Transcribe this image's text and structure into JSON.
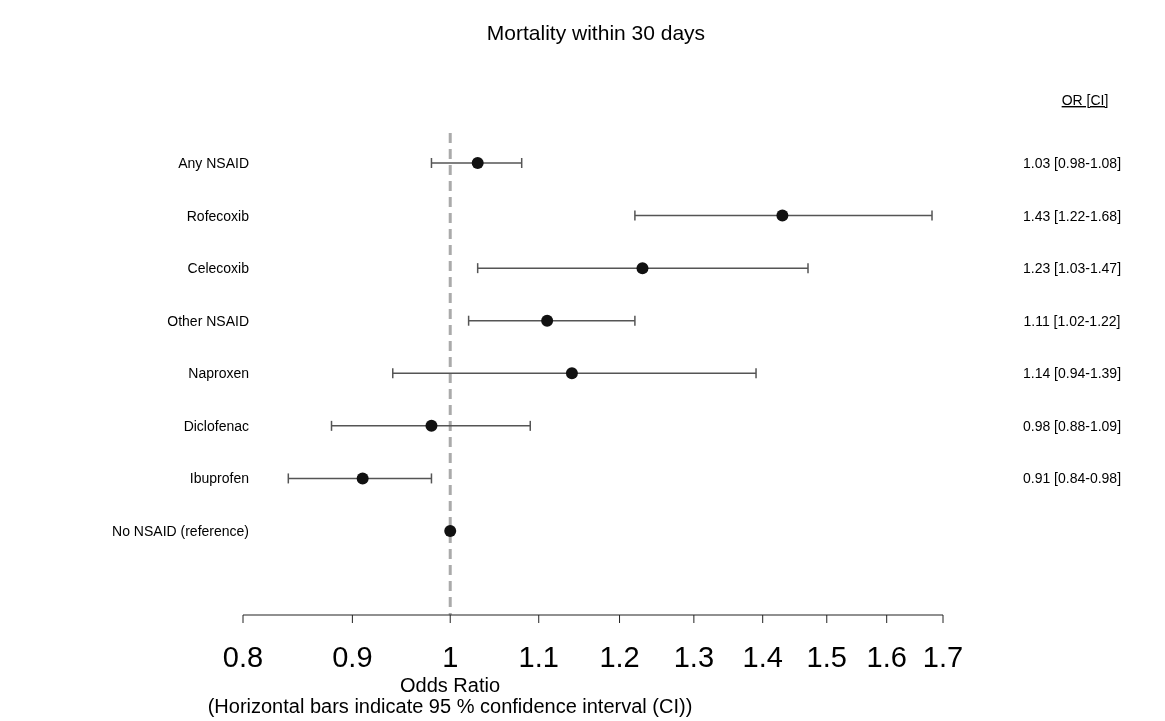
{
  "chart_data": {
    "type": "scatter",
    "orientation": "horizontal",
    "title": "Mortality within 30 days",
    "xlabel": "Odds Ratio",
    "categories": [
      "Any NSAID",
      "Rofecoxib",
      "Celecoxib",
      "Other NSAID",
      "Naproxen",
      "Diclofenac",
      "Ibuprofen",
      "No NSAID (reference)"
    ],
    "series": [
      {
        "color": "#111111",
        "values": [
          1.03,
          1.43,
          1.23,
          1.11,
          1.14,
          0.98,
          0.91,
          1
        ],
        "errors": [
          [
            0.98,
            1.08
          ],
          [
            1.22,
            1.68
          ],
          [
            1.03,
            1.47
          ],
          [
            1.02,
            1.22
          ],
          [
            0.94,
            1.39
          ],
          [
            0.88,
            1.09
          ],
          [
            0.84,
            0.98
          ],
          null
        ],
        "value_labels": [
          "1.03 [0.98-1.08]",
          "1.43 [1.22-1.68]",
          "1.23 [1.03-1.47]",
          "1.11 [1.02-1.22]",
          "1.14 [0.94-1.39]",
          "0.98 [0.88-1.09]",
          "0.91 [0.84-0.98]",
          null
        ]
      }
    ],
    "log": "x",
    "xlim": [
      0.8,
      1.7
    ],
    "xticks": [
      0.8,
      0.9,
      1,
      1.1,
      1.2,
      1.3,
      1.4,
      1.5,
      1.6,
      1.7
    ],
    "marker": "circle",
    "grid": false,
    "ref_lines": [
      {
        "axis": "x",
        "value": 1,
        "color": "#aaaaaa",
        "line_style": "dashed"
      }
    ],
    "annotations": [
      "OR [CI]",
      "(Horizontal bars indicate 95 % confidence interval (CI))"
    ]
  }
}
